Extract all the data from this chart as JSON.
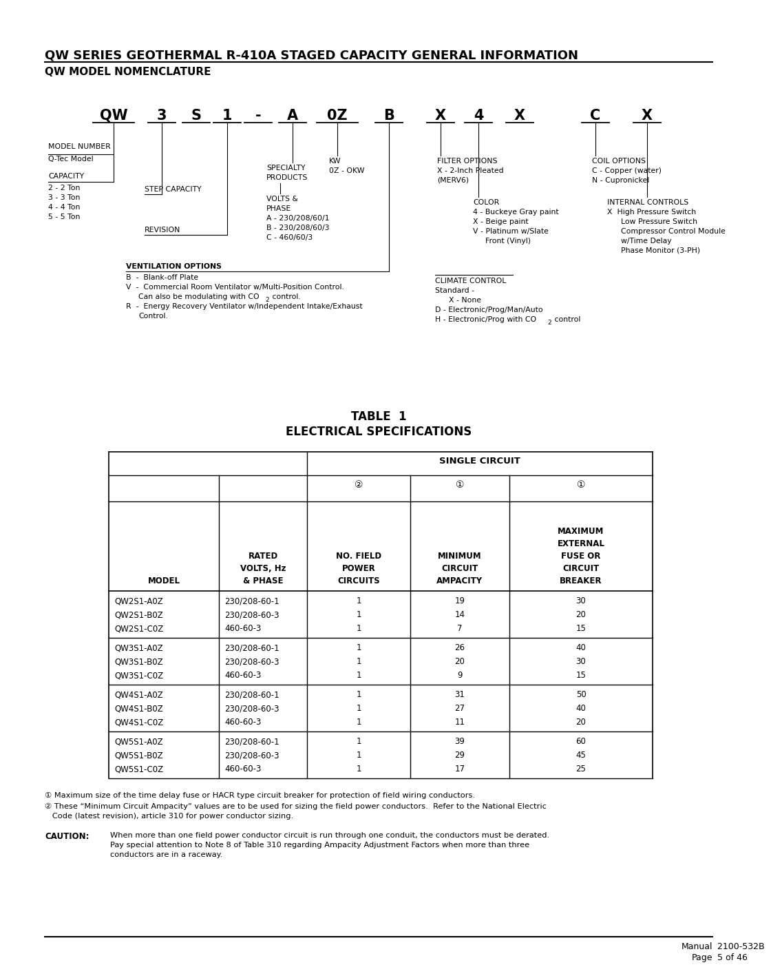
{
  "title": "QW SERIES GEOTHERMAL R-410A STAGED CAPACITY GENERAL INFORMATION",
  "subtitle": "QW MODEL NOMENCLATURE",
  "bg_color": "#ffffff",
  "table_title_line1": "TABLE  1",
  "table_title_line2": "ELECTRICAL SPECIFICATIONS",
  "nomenclature_chars": [
    "QW",
    "3",
    "S",
    "1",
    "-",
    "A",
    "0Z",
    "B",
    "X",
    "4",
    "X",
    "C",
    "X"
  ],
  "table_data": [
    [
      "QW2S1-A0Z",
      "230/208-60-1",
      "1",
      "19",
      "30"
    ],
    [
      "QW2S1-B0Z",
      "230/208-60-3",
      "1",
      "14",
      "20"
    ],
    [
      "QW2S1-C0Z",
      "460-60-3",
      "1",
      "7",
      "15"
    ],
    [
      "QW3S1-A0Z",
      "230/208-60-1",
      "1",
      "26",
      "40"
    ],
    [
      "QW3S1-B0Z",
      "230/208-60-3",
      "1",
      "20",
      "30"
    ],
    [
      "QW3S1-C0Z",
      "460-60-3",
      "1",
      "9",
      "15"
    ],
    [
      "QW4S1-A0Z",
      "230/208-60-1",
      "1",
      "31",
      "50"
    ],
    [
      "QW4S1-B0Z",
      "230/208-60-3",
      "1",
      "27",
      "40"
    ],
    [
      "QW4S1-C0Z",
      "460-60-3",
      "1",
      "11",
      "20"
    ],
    [
      "QW5S1-A0Z",
      "230/208-60-1",
      "1",
      "39",
      "60"
    ],
    [
      "QW5S1-B0Z",
      "230/208-60-3",
      "1",
      "29",
      "45"
    ],
    [
      "QW5S1-C0Z",
      "460-60-3",
      "1",
      "17",
      "25"
    ]
  ],
  "footnote1": "① Maximum size of the time delay fuse or HACR type circuit breaker for protection of field wiring conductors.",
  "footnote2a": "② These “Minimum Circuit Ampacity” values are to be used for sizing the field power conductors.  Refer to the National Electric",
  "footnote2b": "   Code (latest revision), article 310 for power conductor sizing.",
  "caution_label": "CAUTION:",
  "caution_line1": "When more than one field power conductor circuit is run through one conduit, the conductors must be derated.",
  "caution_line2": "Pay special attention to Note 8 of Table 310 regarding Ampacity Adjustment Factors when more than three",
  "caution_line3": "conductors are in a raceway.",
  "footer_manual_label": "Manual",
  "footer_manual_val": "2100-532B",
  "footer_page_label": "Page",
  "footer_page_val": "5 of 46"
}
